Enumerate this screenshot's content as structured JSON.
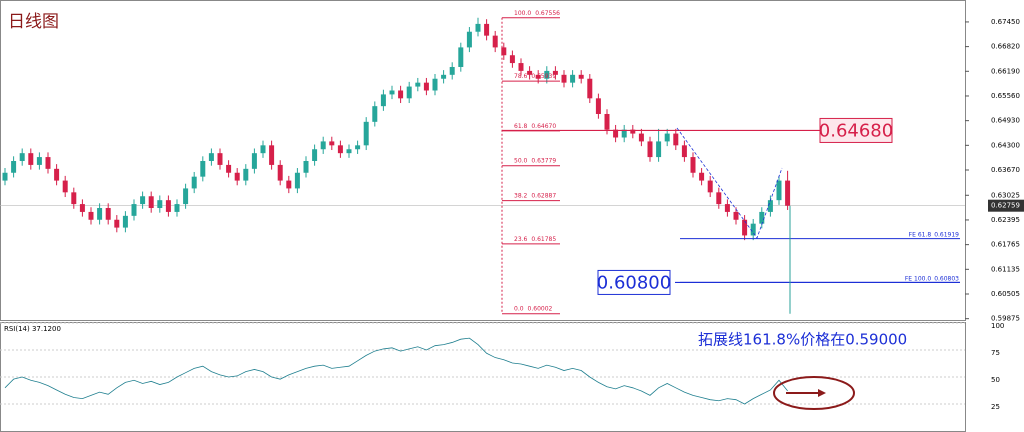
{
  "chart_data": [
    {
      "type": "candlestick",
      "title": "日线图",
      "up_color": "#26a69a",
      "down_color": "#d6204a",
      "ylim": [
        0.5979,
        0.6801
      ],
      "yticks": [
        {
          "value": 0.6745,
          "label": "0.67450"
        },
        {
          "value": 0.6682,
          "label": "0.66820"
        },
        {
          "value": 0.6619,
          "label": "0.66190"
        },
        {
          "value": 0.6556,
          "label": "0.65560"
        },
        {
          "value": 0.6493,
          "label": "0.64930"
        },
        {
          "value": 0.643,
          "label": "0.64300"
        },
        {
          "value": 0.6367,
          "label": "0.63670"
        },
        0.63025,
        0.62395,
        0.61765,
        0.61135,
        0.60505,
        0.59875
      ],
      "current_price": 0.62759,
      "fib": [
        {
          "ratio": {
            "value": 100,
            "label": "100.0"
          },
          "price": 0.67556
        },
        {
          "ratio": 78.6,
          "price": 0.65939
        },
        {
          "ratio": 61.8,
          "price": {
            "value": 0.6467,
            "label": "0.64670"
          }
        },
        {
          "ratio": {
            "value": 50,
            "label": "50.0"
          },
          "price": 0.63779
        },
        {
          "ratio": 38.2,
          "price": 0.62887
        },
        {
          "ratio": 23.6,
          "price": 0.61785
        },
        {
          "ratio": {
            "value": 0,
            "label": "0.0"
          },
          "price": 0.60002
        }
      ],
      "fe": [
        {
          "label": "FE 61.8",
          "price": 0.61919
        },
        {
          "label": "FE 100.0",
          "price": 0.60803
        }
      ],
      "markers": [
        {
          "price": {
            "value": 0.6468,
            "label": "0.64680"
          },
          "color": "#d6204a"
        },
        {
          "price": {
            "value": 0.608,
            "label": "0.60800"
          },
          "color": "#1c2fd6"
        }
      ],
      "candles": [
        [
          0.634,
          0.6372,
          0.6328,
          0.636
        ],
        [
          0.636,
          0.6402,
          0.6348,
          0.639
        ],
        [
          0.639,
          0.6422,
          0.6378,
          0.641
        ],
        [
          0.641,
          0.6422,
          0.6368,
          0.638
        ],
        [
          0.638,
          0.6412,
          0.6368,
          0.64
        ],
        [
          0.64,
          0.6412,
          0.6358,
          0.637
        ],
        [
          0.637,
          0.6382,
          0.6328,
          0.634
        ],
        [
          0.634,
          0.6352,
          0.6298,
          0.631
        ],
        [
          0.631,
          0.6322,
          0.6268,
          0.628
        ],
        [
          0.628,
          0.6292,
          0.6248,
          0.626
        ],
        [
          0.626,
          0.6272,
          0.6228,
          0.624
        ],
        [
          0.624,
          0.6282,
          0.6228,
          0.627
        ],
        [
          0.627,
          0.6282,
          0.6228,
          0.624
        ],
        [
          0.624,
          0.6252,
          0.6208,
          0.622
        ],
        [
          0.622,
          0.6262,
          0.6208,
          0.625
        ],
        [
          0.625,
          0.6292,
          0.6238,
          0.628
        ],
        [
          0.628,
          0.6312,
          0.6268,
          0.63
        ],
        [
          0.63,
          0.6312,
          0.6258,
          0.627
        ],
        [
          0.627,
          0.6302,
          0.6258,
          0.629
        ],
        [
          0.629,
          0.6302,
          0.6248,
          0.626
        ],
        [
          0.626,
          0.6292,
          0.6248,
          0.628
        ],
        [
          0.628,
          0.6332,
          0.6268,
          0.632
        ],
        [
          0.632,
          0.6362,
          0.6308,
          0.635
        ],
        [
          0.635,
          0.6402,
          0.6338,
          0.639
        ],
        [
          0.639,
          0.6422,
          0.6378,
          0.641
        ],
        [
          0.641,
          0.6422,
          0.6368,
          0.638
        ],
        [
          0.638,
          0.6392,
          0.6348,
          0.636
        ],
        [
          0.636,
          0.6372,
          0.6328,
          0.634
        ],
        [
          0.634,
          0.6382,
          0.6328,
          0.637
        ],
        [
          0.637,
          0.6422,
          0.6358,
          0.641
        ],
        [
          0.641,
          0.6442,
          0.6398,
          0.643
        ],
        [
          0.643,
          0.6442,
          0.6368,
          0.638
        ],
        [
          0.638,
          0.6392,
          0.6328,
          0.634
        ],
        [
          0.634,
          0.6352,
          0.6308,
          0.632
        ],
        [
          0.632,
          0.6372,
          0.6308,
          0.636
        ],
        [
          0.636,
          0.6402,
          0.6348,
          0.639
        ],
        [
          0.639,
          0.6432,
          0.6378,
          0.642
        ],
        [
          0.642,
          0.6452,
          0.6408,
          0.644
        ],
        [
          0.644,
          0.6452,
          0.6418,
          0.643
        ],
        [
          0.643,
          0.6442,
          0.6398,
          0.641
        ],
        [
          0.641,
          0.6432,
          0.6398,
          0.642
        ],
        [
          0.642,
          0.6442,
          0.6408,
          0.643
        ],
        [
          0.643,
          0.6502,
          0.6418,
          0.649
        ],
        [
          0.649,
          0.6542,
          0.6478,
          0.653
        ],
        [
          0.653,
          0.6572,
          0.6518,
          0.656
        ],
        [
          0.656,
          0.6582,
          0.6548,
          0.657
        ],
        [
          0.657,
          0.6582,
          0.6538,
          0.655
        ],
        [
          0.655,
          0.6592,
          0.6538,
          0.658
        ],
        [
          0.658,
          0.6602,
          0.6568,
          0.659
        ],
        [
          0.659,
          0.6602,
          0.6558,
          0.657
        ],
        [
          0.657,
          0.6612,
          0.6558,
          0.66
        ],
        [
          0.66,
          0.6622,
          0.6588,
          0.661
        ],
        [
          0.661,
          0.6642,
          0.6598,
          0.663
        ],
        [
          0.663,
          0.6692,
          0.6618,
          0.668
        ],
        [
          0.668,
          0.6732,
          0.6668,
          0.672
        ],
        [
          0.672,
          0.67556,
          0.6708,
          0.674
        ],
        [
          0.674,
          0.6752,
          0.6698,
          0.671
        ],
        [
          0.671,
          0.6722,
          0.6668,
          0.668
        ],
        [
          0.668,
          0.6692,
          0.6648,
          0.666
        ],
        [
          0.666,
          0.6672,
          0.6628,
          0.664
        ],
        [
          0.664,
          0.6652,
          0.6608,
          0.662
        ],
        [
          0.662,
          0.6632,
          0.6598,
          0.661
        ],
        [
          0.661,
          0.6622,
          0.6588,
          0.66
        ],
        [
          0.66,
          0.6632,
          0.6588,
          0.662
        ],
        [
          0.662,
          0.6632,
          0.6598,
          0.661
        ],
        [
          0.661,
          0.6622,
          0.6578,
          0.659
        ],
        [
          0.659,
          0.6622,
          0.6578,
          0.661
        ],
        [
          0.661,
          0.6622,
          0.6588,
          0.66
        ],
        [
          0.66,
          0.6612,
          0.6538,
          0.655
        ],
        [
          0.655,
          0.6562,
          0.6498,
          0.651
        ],
        [
          0.651,
          0.6522,
          0.6458,
          0.647
        ],
        [
          0.647,
          0.6482,
          0.6438,
          0.645
        ],
        [
          0.645,
          0.6482,
          0.6438,
          0.647
        ],
        [
          0.647,
          0.6482,
          0.6448,
          0.646
        ],
        [
          0.646,
          0.6472,
          0.6428,
          0.644
        ],
        [
          0.644,
          0.6452,
          0.6388,
          0.64
        ],
        [
          0.64,
          0.6472,
          0.6388,
          0.644
        ],
        [
          0.644,
          0.6472,
          0.6428,
          0.646
        ],
        [
          0.646,
          0.6472,
          0.6418,
          0.643
        ],
        [
          0.643,
          0.6442,
          0.6388,
          0.64
        ],
        [
          0.64,
          0.6412,
          0.6348,
          0.636
        ],
        [
          0.636,
          0.6372,
          0.6328,
          0.634
        ],
        [
          0.634,
          0.6352,
          0.6298,
          0.631
        ],
        [
          0.631,
          0.6322,
          0.6268,
          0.628
        ],
        [
          0.628,
          0.6292,
          0.6248,
          0.626
        ],
        [
          0.626,
          0.6272,
          0.6228,
          0.624
        ],
        [
          0.624,
          0.6252,
          0.6188,
          0.62
        ],
        [
          0.62,
          0.6242,
          0.6188,
          0.623
        ],
        [
          0.623,
          0.6272,
          0.6218,
          0.626
        ],
        [
          0.626,
          0.6302,
          0.6248,
          0.629
        ],
        [
          0.629,
          0.6352,
          0.6278,
          0.634
        ],
        [
          0.634,
          0.6365,
          0.6265,
          0.62759
        ]
      ]
    },
    {
      "type": "line",
      "title": "RSI(14) 37.1200",
      "color": "#1f7f8f",
      "ylim": [
        0,
        100
      ],
      "yticks": [
        25,
        50,
        75,
        100
      ],
      "annotation": "拓展线161.8%价格在0.59000",
      "values": [
        40,
        48,
        50,
        47,
        45,
        42,
        38,
        34,
        31,
        30,
        33,
        36,
        34,
        40,
        45,
        47,
        44,
        46,
        43,
        45,
        50,
        54,
        58,
        60,
        55,
        52,
        50,
        51,
        55,
        57,
        55,
        50,
        48,
        52,
        55,
        58,
        60,
        61,
        58,
        59,
        60,
        65,
        70,
        74,
        76,
        77,
        74,
        76,
        78,
        75,
        79,
        80,
        82,
        85,
        86,
        80,
        72,
        68,
        66,
        63,
        62,
        60,
        58,
        61,
        59,
        56,
        58,
        56,
        50,
        45,
        41,
        39,
        42,
        40,
        37,
        33,
        40,
        44,
        40,
        36,
        33,
        31,
        29,
        28,
        30,
        29,
        25,
        30,
        34,
        38,
        47,
        37.12
      ]
    }
  ]
}
